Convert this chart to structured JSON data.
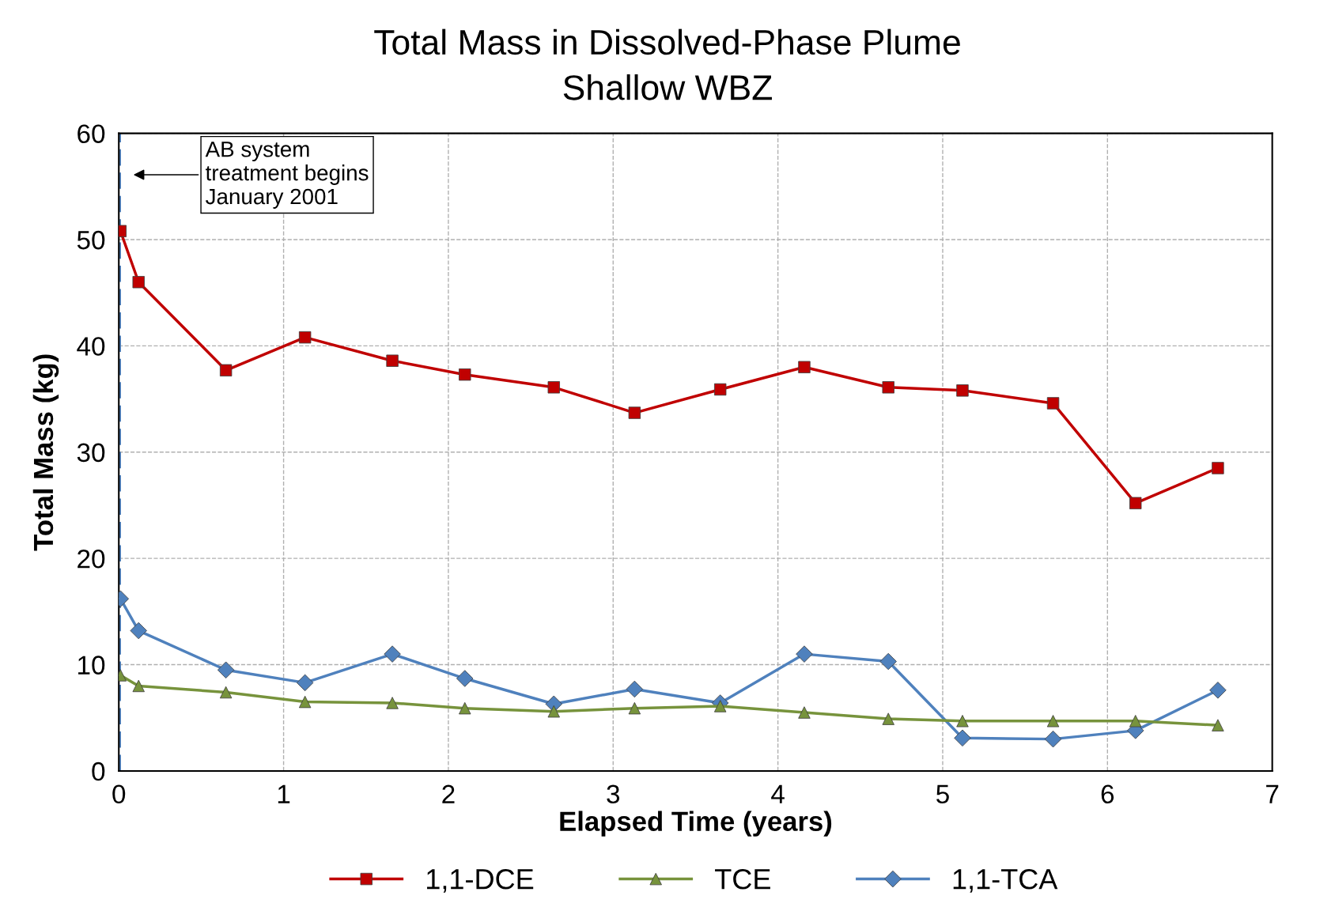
{
  "chart_data": {
    "type": "line",
    "title": "Total Mass in Dissolved-Phase Plume",
    "subtitle": "Shallow WBZ",
    "xlabel": "Elapsed Time (years)",
    "ylabel": "Total Mass (kg)",
    "x": [
      0.01,
      0.12,
      0.65,
      1.13,
      1.66,
      2.1,
      2.64,
      3.13,
      3.65,
      4.16,
      4.67,
      5.12,
      5.67,
      6.17,
      6.67
    ],
    "series": [
      {
        "name": "1,1-DCE",
        "color": "#c00000",
        "marker": "square",
        "values": [
          50.8,
          46.0,
          37.7,
          40.8,
          38.6,
          37.3,
          36.1,
          33.7,
          35.9,
          38.0,
          36.1,
          35.8,
          34.6,
          25.2,
          28.5
        ]
      },
      {
        "name": "TCE",
        "color": "#77933c",
        "marker": "triangle",
        "values": [
          9.0,
          8.0,
          7.4,
          6.5,
          6.4,
          5.9,
          5.6,
          5.9,
          6.1,
          5.5,
          4.9,
          4.7,
          4.7,
          4.7,
          4.3
        ]
      },
      {
        "name": "1,1-TCA",
        "color": "#4f81bd",
        "marker": "diamond",
        "values": [
          16.2,
          13.2,
          9.5,
          8.3,
          11.0,
          8.7,
          6.3,
          7.7,
          6.4,
          11.0,
          10.3,
          3.1,
          3.0,
          3.8,
          7.6
        ]
      }
    ],
    "xlim": [
      0,
      7
    ],
    "xticks": [
      0,
      1,
      2,
      3,
      4,
      5,
      6,
      7
    ],
    "ylim": [
      0,
      60
    ],
    "yticks": [
      0,
      10,
      20,
      30,
      40,
      50,
      60
    ],
    "ref_lines": [
      {
        "axis": "x",
        "value": 0,
        "color": "#4f81bd",
        "line_style": "dashed"
      }
    ],
    "annotations": [
      "AB system\ntreatment begins\nJanuary 2001"
    ],
    "grid": true,
    "legend": "bottom",
    "line_style": "solid"
  }
}
